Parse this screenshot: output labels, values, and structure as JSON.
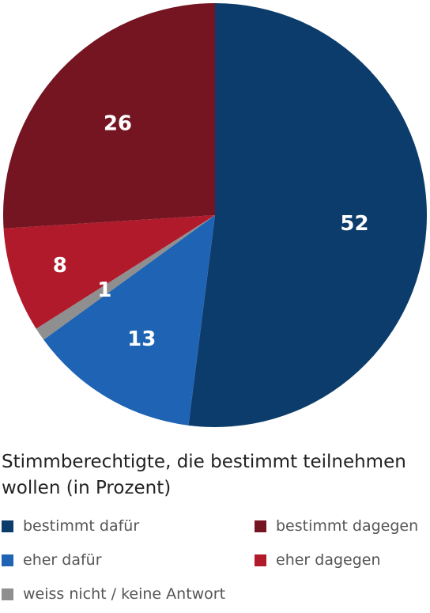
{
  "chart_data": {
    "type": "pie",
    "title": "Stimmberechtigte, die bestimmt teilnehmen wollen (in Prozent)",
    "slices": [
      {
        "name": "bestimmt dafür",
        "value": 52,
        "label": "52",
        "color": "#0c3c6b"
      },
      {
        "name": "eher dafür",
        "value": 13,
        "label": "13",
        "color": "#1f63b4"
      },
      {
        "name": "weiss nicht / keine Antwort",
        "value": 1,
        "label": "1",
        "color": "#8f8f8f"
      },
      {
        "name": "eher dagegen",
        "value": 8,
        "label": "8",
        "color": "#b01a2b"
      },
      {
        "name": "bestimmt dagegen",
        "value": 26,
        "label": "26",
        "color": "#741521"
      }
    ],
    "legend": [
      {
        "label": "bestimmt dafür",
        "color": "#0c3c6b"
      },
      {
        "label": "bestimmt dagegen",
        "color": "#741521"
      },
      {
        "label": "eher dafür",
        "color": "#1f63b4"
      },
      {
        "label": "eher dagegen",
        "color": "#b01a2b"
      },
      {
        "label": "weiss nicht / keine Antwort",
        "color": "#8f8f8f"
      }
    ],
    "legend_placement": "bottom"
  }
}
